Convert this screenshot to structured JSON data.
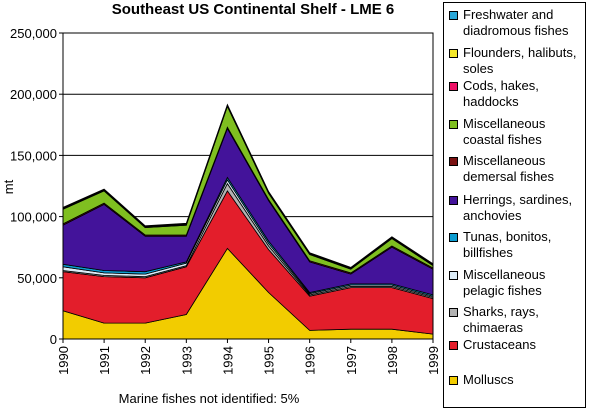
{
  "chart_data": {
    "type": "area",
    "stacked": true,
    "title": "Southeast US Continental Shelf - LME 6",
    "ylabel": "mt",
    "xlabel": "",
    "x": [
      "1990",
      "1991",
      "1992",
      "1993",
      "1994",
      "1995",
      "1996",
      "1997",
      "1998",
      "1999"
    ],
    "ylim": [
      0,
      250000
    ],
    "yticks": [
      "0",
      "50,000",
      "100,000",
      "150,000",
      "200,000",
      "250,000"
    ],
    "ytick_values": [
      0,
      50000,
      100000,
      150000,
      200000,
      250000
    ],
    "grid": true,
    "legend_position": "right",
    "series": [
      {
        "name": "Molluscs",
        "color": "#f2cc00",
        "values": [
          23000,
          13000,
          13000,
          20000,
          74000,
          38000,
          7000,
          8000,
          8000,
          4000
        ]
      },
      {
        "name": "Crustaceans",
        "color": "#e31e2b",
        "values": [
          32000,
          38000,
          37000,
          39000,
          47000,
          35000,
          28000,
          34000,
          34000,
          29000
        ]
      },
      {
        "name": "Sharks, rays, chimaeras",
        "color": "#b3b3b3",
        "values": [
          1000,
          1000,
          1000,
          1000,
          6000,
          3000,
          1000,
          1000,
          1000,
          1000
        ]
      },
      {
        "name": "Miscellaneous pelagic fishes",
        "color": "#dcecf8",
        "values": [
          3000,
          2000,
          2000,
          2000,
          3000,
          2000,
          1000,
          1000,
          1000,
          1000
        ]
      },
      {
        "name": "Tunas, bonitos, billfishes",
        "color": "#0c9cd0",
        "values": [
          2000,
          2000,
          2000,
          1000,
          2000,
          2000,
          1000,
          1000,
          1000,
          1000
        ]
      },
      {
        "name": "Herrings, sardines, anchovies",
        "color": "#43139a",
        "values": [
          32000,
          54000,
          29000,
          21000,
          40000,
          33000,
          25000,
          8000,
          30000,
          21000
        ]
      },
      {
        "name": "Miscellaneous demersal fishes",
        "color": "#7a1111",
        "values": [
          1000,
          1000,
          1000,
          1000,
          1000,
          1000,
          1000,
          1000,
          1000,
          1000
        ]
      },
      {
        "name": "Miscellaneous coastal fishes",
        "color": "#7fbf20",
        "values": [
          12000,
          10000,
          6000,
          8000,
          17000,
          5000,
          5000,
          3000,
          6000,
          2000
        ]
      },
      {
        "name": "Cods, hakes, haddocks",
        "color": "#ee1166",
        "values": [
          500,
          500,
          500,
          500,
          500,
          500,
          500,
          500,
          500,
          500
        ]
      },
      {
        "name": "Flounders, halibuts, soles",
        "color": "#f5e82a",
        "values": [
          500,
          500,
          500,
          500,
          500,
          500,
          500,
          500,
          500,
          500
        ]
      },
      {
        "name": "Freshwater and diadromous fishes",
        "color": "#2aa7d8",
        "values": [
          500,
          500,
          500,
          500,
          500,
          500,
          500,
          500,
          500,
          500
        ]
      }
    ],
    "note": "Marine fishes not identified: 5%"
  },
  "legend": [
    {
      "label": "Freshwater and diadromous fishes",
      "color": "#2aa7d8"
    },
    {
      "label": "Flounders, halibuts, soles",
      "color": "#f5e82a"
    },
    {
      "label": "Cods, hakes, haddocks",
      "color": "#ee1166"
    },
    {
      "label": "Miscellaneous coastal fishes",
      "color": "#7fbf20"
    },
    {
      "label": "Miscellaneous demersal fishes",
      "color": "#7a1111"
    },
    {
      "label": "Herrings, sardines, anchovies",
      "color": "#43139a"
    },
    {
      "label": "Tunas, bonitos, billfishes",
      "color": "#0c9cd0"
    },
    {
      "label": "Miscellaneous pelagic fishes",
      "color": "#dcecf8"
    },
    {
      "label": "Sharks, rays, chimaeras",
      "color": "#b3b3b3"
    },
    {
      "label": "Crustaceans",
      "color": "#e31e2b"
    },
    {
      "label": "Molluscs",
      "color": "#f2cc00"
    }
  ]
}
